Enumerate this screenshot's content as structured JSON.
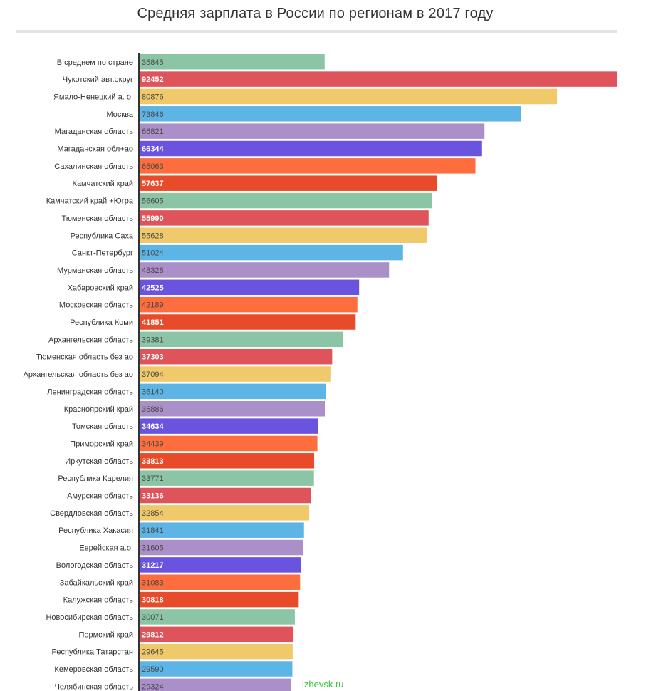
{
  "title": "Средняя зарплата в России по регионам в 2017 году",
  "watermark": "izhevsk.ru",
  "chart_data": {
    "type": "bar",
    "orientation": "horizontal",
    "title": "Средняя зарплата в России по регионам в 2017 году",
    "xlabel": "",
    "ylabel": "",
    "grid": false,
    "legend": "none",
    "palette": [
      "#8cc5a5",
      "#de545a",
      "#f0ca6a",
      "#5cb5e5",
      "#ab8fc8",
      "#6a53de",
      "#fd6d3d",
      "#e84b2a"
    ],
    "categories": [
      "В среднем по стране",
      "Чукотский авт.округ",
      "Ямало-Ненецкий а. о.",
      "Москва",
      "Магаданская область",
      "Магаданская обл+ао",
      "Сахалинская область",
      "Камчатский край",
      "Камчатский край +Югра",
      "Тюменская область",
      "Республика Саха",
      "Санкт-Петербург",
      "Мурманская область",
      "Хабаровский край",
      "Московская область",
      "Республика Коми",
      "Архангельская область",
      "Тюменская область без ао",
      "Архангельская область без ао",
      "Ленинградская область",
      "Красноярский край",
      "Томская область",
      "Приморский край",
      "Иркутская область",
      "Республика Карелия",
      "Амурская область",
      "Свердловская область",
      "Республика Хакасия",
      "Еврейская а.о.",
      "Вологодская область",
      "Забайкальский край",
      "Калужская область",
      "Новосибирская область",
      "Пермский край",
      "Республика Татарстан",
      "Кемеровская область",
      "Челябинская область"
    ],
    "values": [
      35845,
      92452,
      80876,
      73846,
      66821,
      66344,
      65063,
      57637,
      56605,
      55990,
      55628,
      51024,
      48328,
      42525,
      42189,
      41851,
      39381,
      37303,
      37094,
      36140,
      35886,
      34634,
      34439,
      33813,
      33771,
      33136,
      32854,
      31841,
      31605,
      31217,
      31083,
      30818,
      30071,
      29812,
      29645,
      29590,
      29324
    ]
  }
}
